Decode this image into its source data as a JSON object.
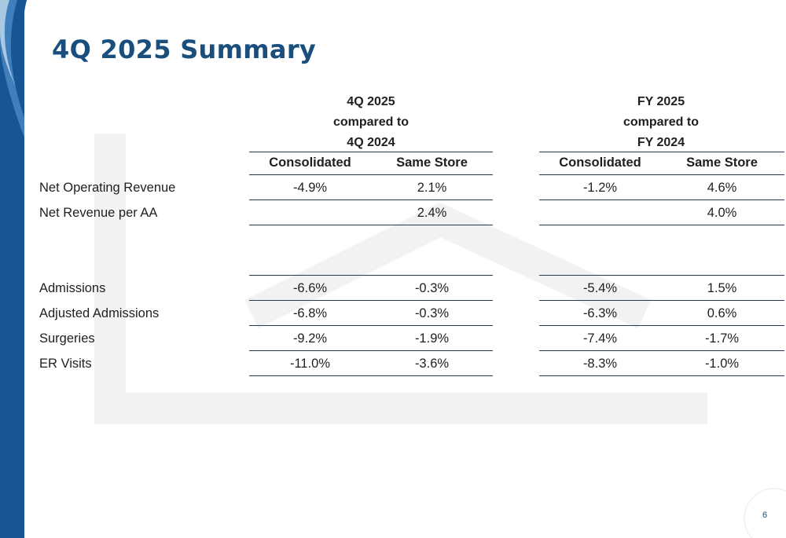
{
  "slide": {
    "title": "4Q 2025 Summary",
    "page_number": "6"
  },
  "groups": [
    {
      "line1": "4Q 2025",
      "line2": "compared to",
      "line3": "4Q 2024",
      "col1": "Consolidated",
      "col2": "Same Store"
    },
    {
      "line1": "FY 2025",
      "line2": "compared to",
      "line3": "FY 2024",
      "col1": "Consolidated",
      "col2": "Same Store"
    }
  ],
  "rows": [
    {
      "label": "Net Operating Revenue",
      "q_cons": "-4.9%",
      "q_same": "2.1%",
      "fy_cons": "-1.2%",
      "fy_same": "4.6%"
    },
    {
      "label": "Net Revenue per AA",
      "q_cons": "",
      "q_same": "2.4%",
      "fy_cons": "",
      "fy_same": "4.0%"
    },
    {
      "label": "Admissions",
      "q_cons": "-6.6%",
      "q_same": "-0.3%",
      "fy_cons": "-5.4%",
      "fy_same": "1.5%"
    },
    {
      "label": "Adjusted Admissions",
      "q_cons": "-6.8%",
      "q_same": "-0.3%",
      "fy_cons": "-6.3%",
      "fy_same": "0.6%"
    },
    {
      "label": "Surgeries",
      "q_cons": "-9.2%",
      "q_same": "-1.9%",
      "fy_cons": "-7.4%",
      "fy_same": "-1.7%"
    },
    {
      "label": "ER Visits",
      "q_cons": "-11.0%",
      "q_same": "-3.6%",
      "fy_cons": "-8.3%",
      "fy_same": "-1.0%"
    }
  ],
  "colors": {
    "brand_blue": "#1a4e7c",
    "sidebar_dark": "#175594",
    "sidebar_mid": "#3f7fbb",
    "sidebar_light": "#a9c9e3"
  }
}
